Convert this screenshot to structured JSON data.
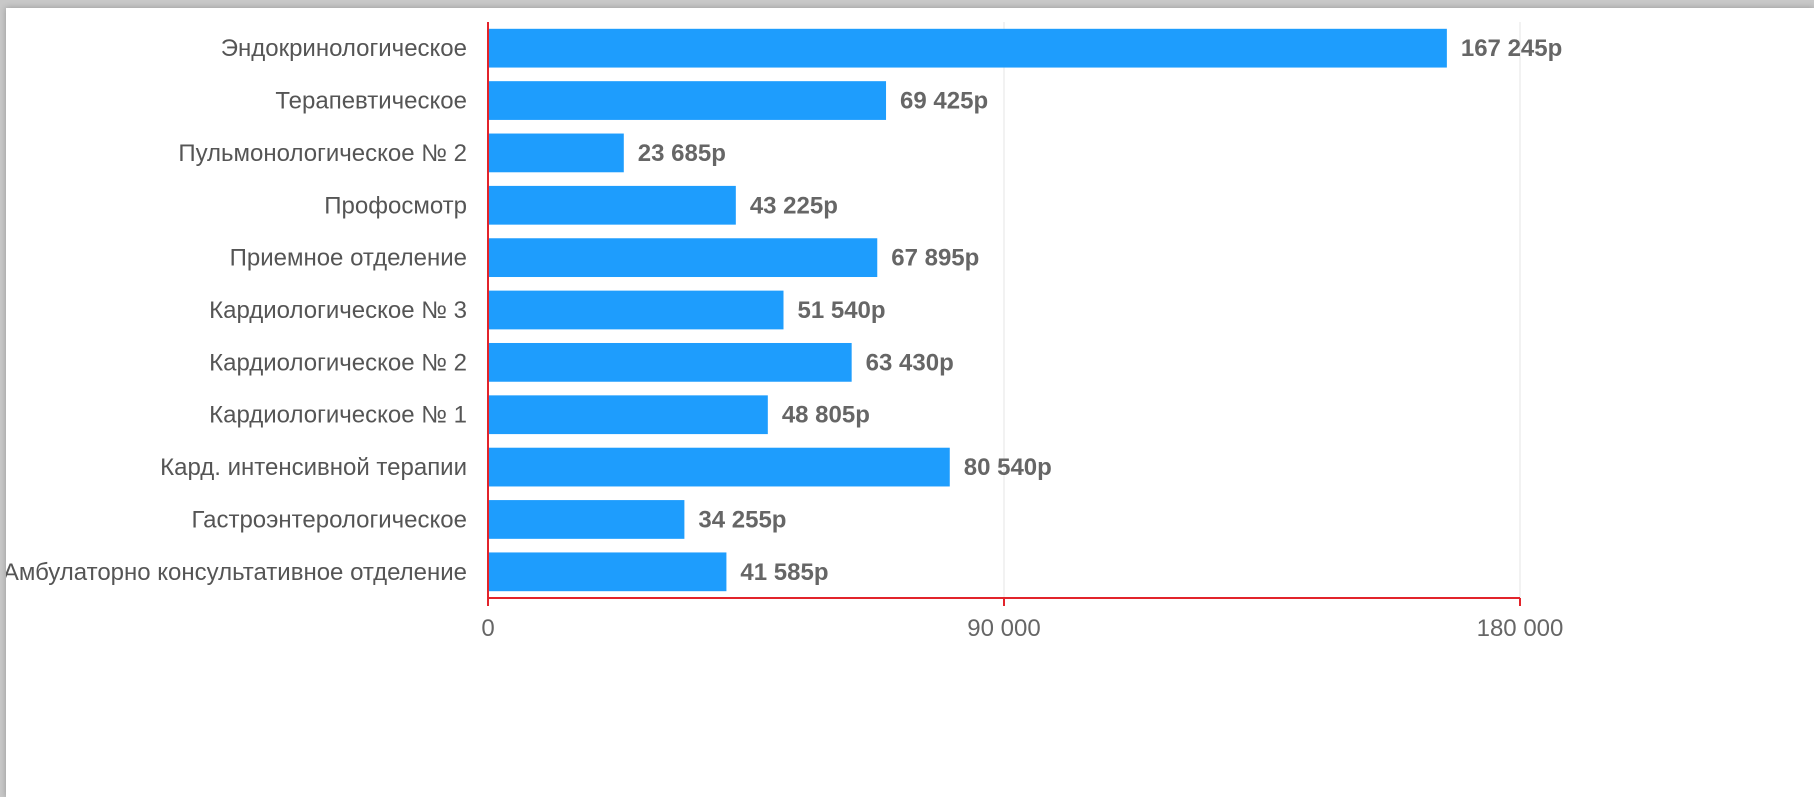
{
  "chart_data": {
    "type": "bar",
    "orientation": "horizontal",
    "categories": [
      "Эндокринологическое",
      "Терапевтическое",
      "Пульмонологическое № 2",
      "Профосмотр",
      "Приемное отделение",
      "Кардиологическое № 3",
      "Кардиологическое № 2",
      "Кардиологическое № 1",
      "Кард. интенсивной терапии",
      "Гастроэнтерологическое",
      "Амбулаторно консультативное отделение"
    ],
    "values": [
      167245,
      69425,
      23685,
      43225,
      67895,
      51540,
      63430,
      48805,
      80540,
      34255,
      41585
    ],
    "value_labels": [
      "167 245р",
      "69 425р",
      "23 685р",
      "43 225р",
      "67 895р",
      "51 540р",
      "63 430р",
      "48 805р",
      "80 540р",
      "34 255р",
      "41 585р"
    ],
    "xlim": [
      0,
      180000
    ],
    "x_ticks": [
      0,
      90000,
      180000
    ],
    "x_tick_labels": [
      "0",
      "90 000",
      "180 000"
    ],
    "grid": true,
    "title": "",
    "xlabel": "",
    "ylabel": ""
  },
  "colors": {
    "bar": "#1e9dfd",
    "axis": "#e2242b",
    "grid": "#e6e6e6",
    "category_text": "#555555",
    "value_text": "#666666"
  }
}
